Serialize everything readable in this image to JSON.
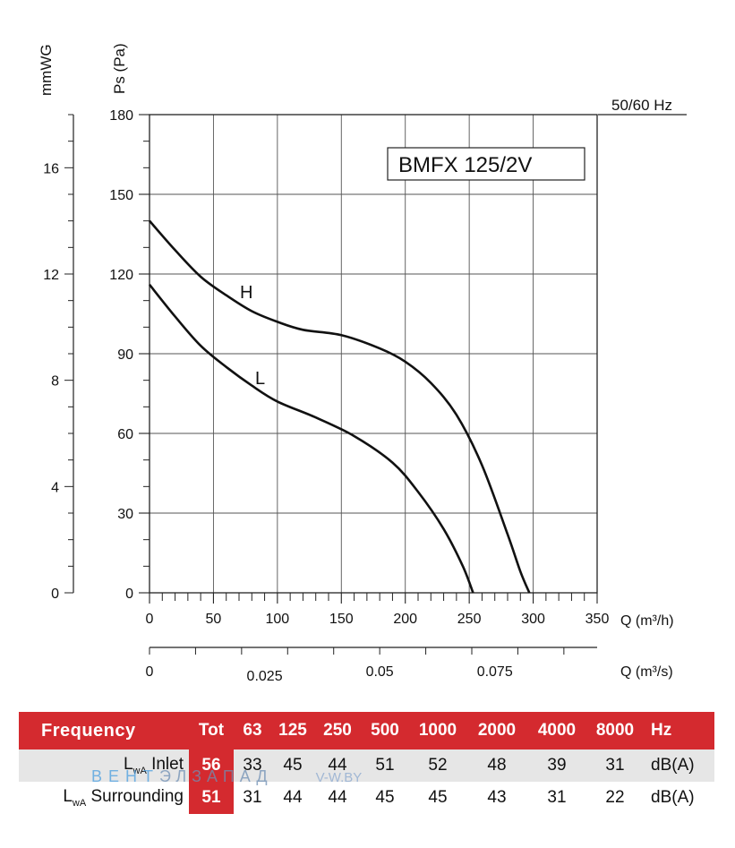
{
  "chart_data": {
    "type": "line",
    "model": "BMFX 125/2V",
    "frequency_note": "50/60 Hz",
    "ylabel": "Ps (Pa)",
    "ylabel2": "mmWG",
    "xlabel": "Q (m³/h)",
    "xlabel2": "Q (m³/s)",
    "xlim": [
      0,
      350
    ],
    "ylim": [
      0,
      180
    ],
    "y2lim": [
      0,
      18
    ],
    "x_ticks": [
      0,
      50,
      100,
      150,
      200,
      250,
      300,
      350
    ],
    "y_ticks": [
      0,
      30,
      60,
      90,
      120,
      150,
      180
    ],
    "y2_ticks": [
      0,
      4,
      8,
      12,
      16
    ],
    "x2_ticks": [
      {
        "value": 0,
        "label": "0"
      },
      {
        "value": 0.025,
        "label": "0.025"
      },
      {
        "value": 0.05,
        "label": "0.05"
      },
      {
        "value": 0.075,
        "label": "0.075"
      }
    ],
    "grid": true,
    "series": [
      {
        "name": "H",
        "x": [
          0,
          20,
          40,
          60,
          80,
          100,
          120,
          150,
          180,
          200,
          220,
          240,
          260,
          280,
          290,
          297
        ],
        "y": [
          140,
          129,
          119,
          112,
          106,
          102,
          99,
          97,
          92,
          87,
          79,
          67,
          48,
          22,
          8,
          0
        ]
      },
      {
        "name": "L",
        "x": [
          0,
          20,
          40,
          60,
          80,
          100,
          130,
          160,
          190,
          210,
          230,
          245,
          253
        ],
        "y": [
          116,
          104,
          93,
          85,
          78,
          72,
          66,
          59,
          49,
          38,
          24,
          10,
          0
        ]
      }
    ]
  },
  "noise_table": {
    "headers": [
      "Frequency",
      "Tot",
      "63",
      "125",
      "250",
      "500",
      "1000",
      "2000",
      "4000",
      "8000",
      "Hz"
    ],
    "rows": [
      {
        "label_main": "L",
        "label_sub": "wA",
        "label_rest": " Inlet",
        "cells": [
          "56",
          "33",
          "45",
          "44",
          "51",
          "52",
          "48",
          "39",
          "31"
        ],
        "unit": "dB(A)"
      },
      {
        "label_main": "L",
        "label_sub": "wA",
        "label_rest": " Surrounding",
        "cells": [
          "51",
          "31",
          "44",
          "44",
          "45",
          "45",
          "43",
          "31",
          "22"
        ],
        "unit": "dB(A)"
      }
    ]
  },
  "watermark": {
    "part1": "ВЕНТ",
    "part2": "ЭЛЗАПАД",
    "part3": "V-W.BY"
  }
}
